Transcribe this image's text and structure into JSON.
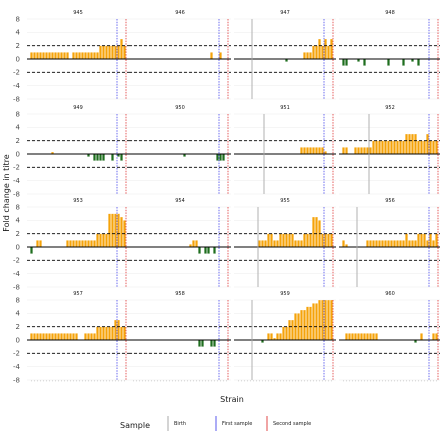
{
  "chart_data": {
    "type": "bar",
    "ylabel": "Fold change in titre",
    "xlabel": "Strain",
    "ylim": [
      -8,
      8
    ],
    "yticks": [
      -8,
      -4,
      -2,
      0,
      2,
      4,
      8
    ],
    "reference_lines": [
      2,
      -2
    ],
    "legend": {
      "title": "Sample",
      "placement": "bottom",
      "entries": [
        {
          "label": "Birth",
          "color": "#aaaaaa"
        },
        {
          "label": "First sample",
          "color": "#5a5aee"
        },
        {
          "label": "Second sample",
          "color": "#e24a4a"
        }
      ]
    },
    "bar_colors": {
      "positive": "#f5a30a",
      "negative": "#1e6e1e"
    },
    "n_strains": 32,
    "panels": [
      {
        "id": "945",
        "birth": null,
        "first": 28.5,
        "second": 31.5,
        "values": [
          1,
          1,
          1,
          1,
          1,
          1,
          1,
          1,
          1,
          1,
          1,
          1,
          1,
          0,
          1,
          1,
          1,
          1,
          1,
          1,
          1,
          1,
          1,
          2,
          2,
          2,
          2,
          2,
          2,
          2,
          3,
          2
        ]
      },
      {
        "id": "946",
        "birth": null,
        "first": 28.5,
        "second": 31.5,
        "values": [
          0,
          0,
          0,
          0,
          0,
          0,
          0,
          0,
          0,
          0,
          0,
          0,
          0,
          0,
          0,
          0,
          0,
          0,
          0,
          0,
          0,
          0,
          0,
          0,
          0,
          0,
          1,
          0,
          0,
          1,
          0,
          0
        ]
      },
      {
        "id": "947",
        "birth": 4.5,
        "first": 28.5,
        "second": 31.5,
        "values": [
          0,
          0,
          0,
          0,
          0,
          0,
          0,
          0,
          0,
          0,
          0,
          0,
          0,
          0,
          0,
          0,
          -0.4,
          0,
          0,
          0,
          0,
          0,
          1,
          1,
          1,
          2,
          2,
          3,
          2,
          3,
          2,
          3
        ]
      },
      {
        "id": "948",
        "birth": null,
        "first": 28.5,
        "second": 31.5,
        "values": [
          -1,
          -1,
          0,
          0,
          0,
          -0.4,
          0,
          -1,
          0,
          0,
          0,
          0,
          0,
          0,
          0,
          -1,
          0,
          0,
          0,
          0,
          -1,
          0,
          0,
          -0.4,
          0,
          -1,
          0,
          0,
          0,
          0,
          0,
          0
        ]
      },
      {
        "id": "949",
        "birth": null,
        "first": 28.5,
        "second": 31.5,
        "values": [
          0,
          0,
          0,
          0,
          0,
          0,
          0,
          0.3,
          0,
          0,
          0,
          0,
          0,
          0,
          0,
          0,
          0,
          0,
          0,
          -0.4,
          0,
          -1,
          -1,
          -1,
          -1,
          0,
          0,
          -1,
          0,
          -0.4,
          -1,
          0
        ]
      },
      {
        "id": "950",
        "birth": null,
        "first": 28.5,
        "second": 31.5,
        "values": [
          0,
          0,
          0,
          0,
          0,
          0,
          0,
          0,
          0,
          0,
          0,
          0,
          0,
          0,
          0,
          0,
          0,
          -0.4,
          0,
          0,
          0,
          0,
          0,
          0,
          0,
          0,
          0,
          0,
          -1,
          -1,
          -1,
          0
        ]
      },
      {
        "id": "951",
        "birth": 8.5,
        "first": 28.5,
        "second": 31.5,
        "values": [
          0,
          0,
          0,
          0,
          0,
          0,
          0,
          0,
          0,
          0,
          0,
          0,
          0,
          0,
          0,
          0,
          0,
          0,
          0,
          0,
          0,
          1,
          1,
          1,
          1,
          1,
          1,
          1,
          1,
          0.4,
          0,
          0
        ]
      },
      {
        "id": "952",
        "birth": 8.5,
        "first": 28.5,
        "second": 31.5,
        "values": [
          1,
          1,
          0,
          0,
          1,
          1,
          1,
          1,
          1,
          1,
          2,
          2,
          2,
          2,
          2,
          2,
          2,
          2,
          2,
          2,
          2,
          3,
          3,
          3,
          3,
          2,
          2,
          2,
          3,
          2,
          2,
          2
        ]
      },
      {
        "id": "953",
        "birth": null,
        "first": 28.5,
        "second": 31.5,
        "values": [
          -1,
          0,
          1,
          1,
          0,
          0,
          0,
          0,
          0,
          0,
          0,
          0,
          1,
          1,
          1,
          1,
          1,
          1,
          1,
          1,
          1,
          1,
          2,
          2,
          2,
          2,
          6,
          6,
          6,
          6,
          5,
          4
        ]
      },
      {
        "id": "954",
        "birth": null,
        "first": 28.5,
        "second": 31.5,
        "values": [
          0,
          0,
          0,
          0,
          0,
          0,
          0,
          0,
          0,
          0,
          0,
          0,
          0,
          0,
          0,
          0,
          0,
          0,
          0,
          0.4,
          1,
          1,
          -1,
          0,
          -1,
          -1,
          0,
          -1,
          0,
          0,
          0,
          0
        ]
      },
      {
        "id": "955",
        "birth": 6.5,
        "first": 28.5,
        "second": 31.5,
        "values": [
          0,
          0,
          0,
          0,
          0,
          0,
          0,
          1,
          1,
          1,
          2,
          2,
          1,
          1,
          2,
          2,
          2,
          2,
          2,
          1,
          1,
          1,
          2,
          2,
          2,
          5,
          5,
          4,
          2,
          2,
          2,
          2
        ]
      },
      {
        "id": "956",
        "birth": 4.5,
        "first": 28.5,
        "second": 31.5,
        "values": [
          1,
          0.4,
          0,
          0,
          0,
          0,
          0,
          0,
          1,
          1,
          1,
          1,
          1,
          1,
          1,
          1,
          1,
          1,
          1,
          1,
          1,
          2,
          1,
          1,
          1,
          2,
          2,
          2,
          1,
          2,
          1,
          2
        ]
      },
      {
        "id": "957",
        "birth": null,
        "first": 28.5,
        "second": 31.5,
        "values": [
          1,
          1,
          1,
          1,
          1,
          1,
          1,
          1,
          1,
          1,
          1,
          1,
          1,
          1,
          1,
          1,
          0,
          0,
          1,
          1,
          1,
          1,
          2,
          2,
          2,
          2,
          2,
          2,
          3,
          3,
          2,
          2
        ]
      },
      {
        "id": "958",
        "birth": null,
        "first": 28.5,
        "second": 31.5,
        "values": [
          0,
          0,
          0,
          0,
          0,
          0,
          0,
          0,
          0,
          0,
          0,
          0,
          0,
          0,
          0,
          0,
          0,
          0,
          0,
          0,
          0,
          0,
          -1,
          -1,
          0,
          0,
          -1,
          -1,
          0,
          0,
          0,
          0
        ]
      },
      {
        "id": "959",
        "birth": 4.5,
        "first": 28.5,
        "second": 31.5,
        "values": [
          0,
          0,
          0,
          0,
          0,
          0,
          0,
          0,
          -0.4,
          0,
          1,
          1,
          0.3,
          1,
          1,
          2,
          2,
          3,
          3,
          4,
          4,
          5,
          5,
          6,
          6,
          7,
          7,
          8,
          8,
          8,
          8,
          8
        ]
      },
      {
        "id": "960",
        "birth": null,
        "first": 28.5,
        "second": 31.5,
        "values": [
          0,
          1,
          1,
          1,
          1,
          1,
          1,
          1,
          1,
          1,
          1,
          1,
          0,
          0,
          0,
          0,
          0,
          0,
          0,
          0,
          0,
          0,
          0,
          0,
          -0.4,
          0,
          1,
          0,
          0,
          0,
          1,
          1
        ]
      }
    ]
  }
}
